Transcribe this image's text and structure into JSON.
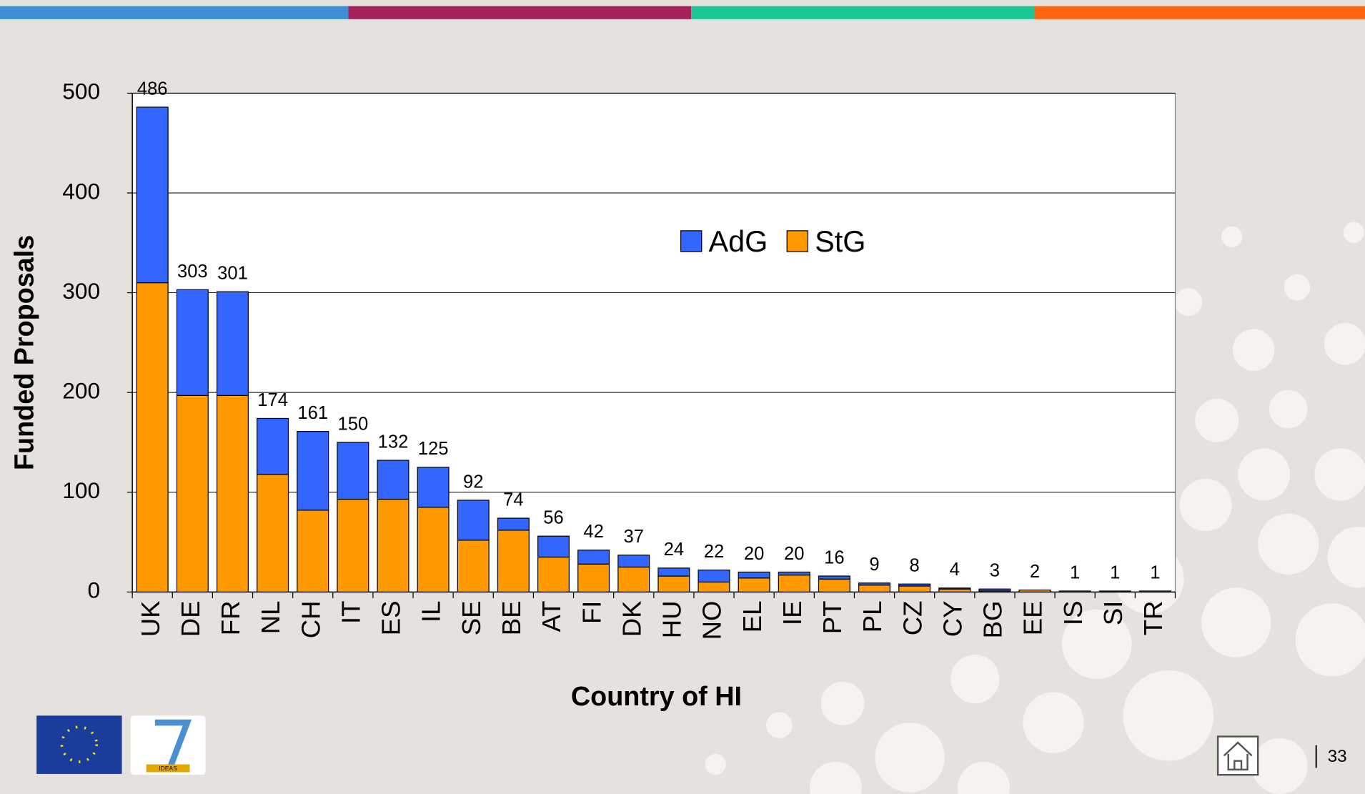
{
  "chart_data": {
    "type": "stacked-bar",
    "xlabel": "Country of HI",
    "ylabel": "Funded Proposals",
    "categories": [
      "UK",
      "DE",
      "FR",
      "NL",
      "CH",
      "IT",
      "ES",
      "IL",
      "SE",
      "BE",
      "AT",
      "FI",
      "DK",
      "HU",
      "NO",
      "EL",
      "IE",
      "PT",
      "PL",
      "CZ",
      "CY",
      "BG",
      "EE",
      "IS",
      "SI",
      "TR"
    ],
    "series": [
      {
        "name": "StG",
        "color": "#ff9900",
        "values": [
          310,
          197,
          197,
          118,
          82,
          93,
          93,
          85,
          52,
          62,
          35,
          28,
          25,
          16,
          10,
          14,
          17,
          13,
          7,
          6,
          3,
          1,
          2,
          1,
          0,
          1
        ]
      },
      {
        "name": "AdG",
        "color": "#3366ff",
        "values": [
          176,
          106,
          104,
          56,
          79,
          57,
          39,
          40,
          40,
          12,
          21,
          14,
          12,
          8,
          12,
          6,
          3,
          3,
          2,
          2,
          1,
          2,
          0,
          0,
          1,
          0
        ]
      }
    ],
    "totals": [
      486,
      303,
      301,
      174,
      161,
      150,
      132,
      125,
      92,
      74,
      56,
      42,
      37,
      24,
      22,
      20,
      20,
      16,
      9,
      8,
      4,
      3,
      2,
      1,
      1,
      1
    ],
    "legend_order": [
      1,
      0
    ],
    "ylim": [
      0,
      500
    ],
    "yticks": [
      0,
      100,
      200,
      300,
      400,
      500
    ],
    "grid": true
  },
  "footer": {
    "logo_text": "IDEAS",
    "page_number": "33"
  }
}
